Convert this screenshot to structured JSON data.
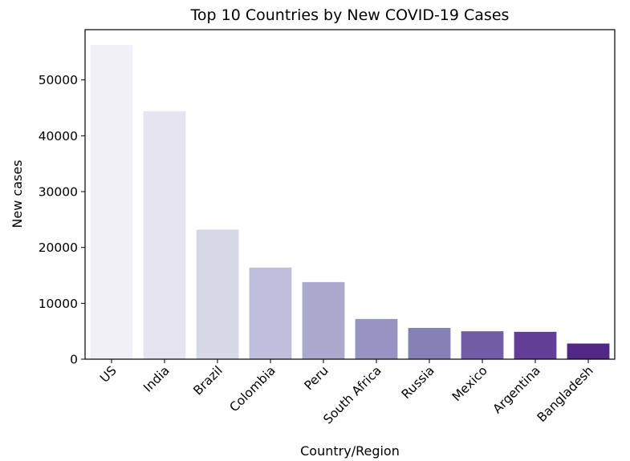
{
  "chart_data": {
    "type": "bar",
    "title": "Top 10 Countries by New COVID-19 Cases",
    "xlabel": "Country/Region",
    "ylabel": "New cases",
    "categories": [
      "US",
      "India",
      "Brazil",
      "Colombia",
      "Peru",
      "South Africa",
      "Russia",
      "Mexico",
      "Argentina",
      "Bangladesh"
    ],
    "values": [
      56300,
      44400,
      23200,
      16400,
      13800,
      7200,
      5600,
      5000,
      4900,
      2800
    ],
    "colors": [
      "#f2f0f7",
      "#e5e4f0",
      "#d6d7e7",
      "#bfbedc",
      "#aba9cd",
      "#9894c2",
      "#8481b6",
      "#725ea5",
      "#623e97",
      "#512886"
    ],
    "ylim": [
      0,
      59000
    ],
    "yticks": [
      0,
      10000,
      20000,
      30000,
      40000,
      50000
    ],
    "grid": false,
    "legend": "none"
  }
}
